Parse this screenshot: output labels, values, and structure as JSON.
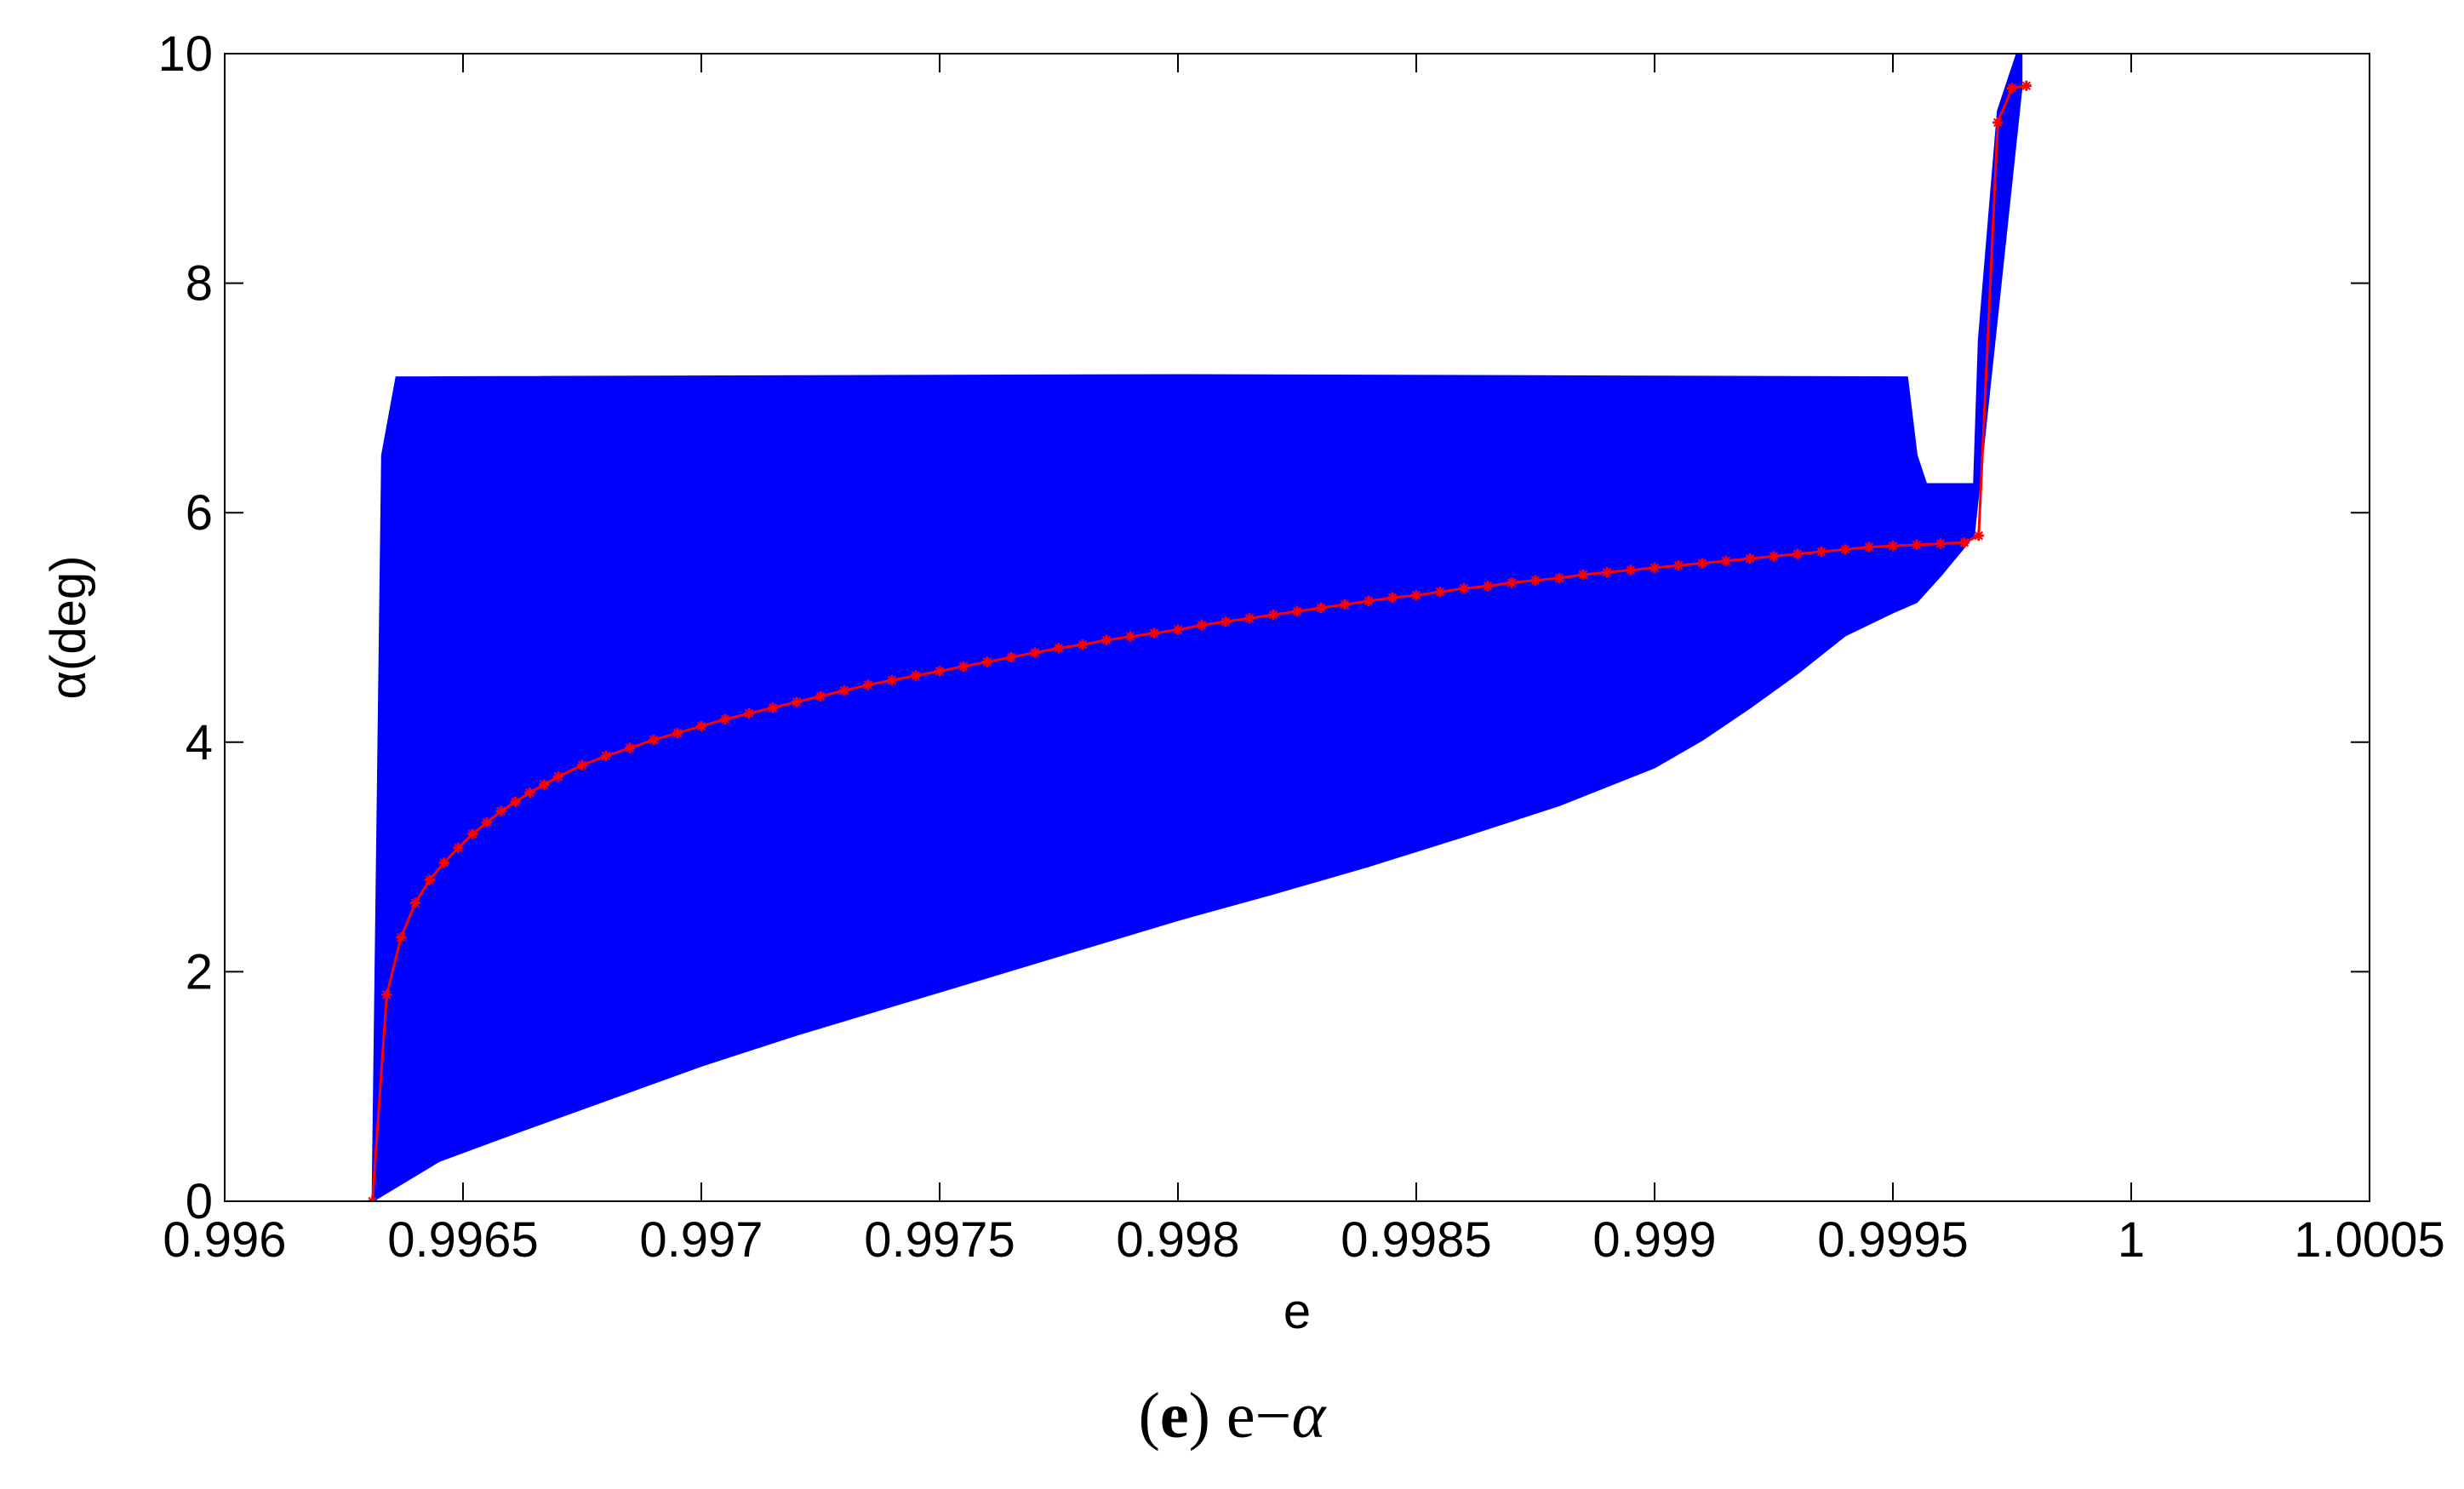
{
  "chart_data": {
    "type": "line",
    "xlabel": "e",
    "ylabel": "α(deg)",
    "xlim": [
      0.996,
      1.0005
    ],
    "ylim": [
      0,
      10
    ],
    "x_ticks": [
      "0.996",
      "0.9965",
      "0.997",
      "0.9975",
      "0.998",
      "0.9985",
      "0.999",
      "0.9995",
      "1",
      "1.0005"
    ],
    "y_ticks": [
      "0",
      "2",
      "4",
      "6",
      "8",
      "10"
    ],
    "series": [
      {
        "color": "#0000ff",
        "kind": "filled band",
        "upper_boundary": {
          "x": [
            0.99631,
            0.99633,
            0.99636,
            0.998,
            0.99953,
            0.99955,
            0.99957,
            0.99967,
            0.99968,
            0.99972,
            0.99976,
            0.99977
          ],
          "y": [
            0,
            6.5,
            7.18,
            7.2,
            7.18,
            6.5,
            6.25,
            6.25,
            7.5,
            9.5,
            10.0,
            10.0
          ]
        },
        "lower_boundary": {
          "x": [
            0.99631,
            0.99645,
            0.9966,
            0.9968,
            0.997,
            0.9972,
            0.9974,
            0.9976,
            0.9978,
            0.998,
            0.9982,
            0.9984,
            0.9986,
            0.9988,
            0.999,
            0.9991,
            0.9992,
            0.9993,
            0.9994,
            0.9995,
            0.99955,
            0.9996,
            0.99967,
            0.99977
          ],
          "y": [
            0,
            0.35,
            0.58,
            0.88,
            1.18,
            1.45,
            1.7,
            1.95,
            2.2,
            2.45,
            2.68,
            2.92,
            3.18,
            3.45,
            3.78,
            4.02,
            4.3,
            4.6,
            4.93,
            5.13,
            5.22,
            5.45,
            5.8,
            9.7
          ]
        }
      },
      {
        "color": "#ff0000",
        "kind": "line with star markers",
        "x": [
          0.99631,
          0.99634,
          0.99637,
          0.9964,
          0.99643,
          0.99646,
          0.99649,
          0.99652,
          0.99655,
          0.99658,
          0.99661,
          0.99664,
          0.99667,
          0.9967,
          0.99675,
          0.9968,
          0.99685,
          0.9969,
          0.99695,
          0.997,
          0.99705,
          0.9971,
          0.99715,
          0.9972,
          0.99725,
          0.9973,
          0.99735,
          0.9974,
          0.99745,
          0.9975,
          0.99755,
          0.9976,
          0.99765,
          0.9977,
          0.99775,
          0.9978,
          0.99785,
          0.9979,
          0.99795,
          0.998,
          0.99805,
          0.9981,
          0.99815,
          0.9982,
          0.99825,
          0.9983,
          0.99835,
          0.9984,
          0.99845,
          0.9985,
          0.99855,
          0.9986,
          0.99865,
          0.9987,
          0.99875,
          0.9988,
          0.99885,
          0.9989,
          0.99895,
          0.999,
          0.99905,
          0.9991,
          0.99915,
          0.9992,
          0.99925,
          0.9993,
          0.99935,
          0.9994,
          0.99945,
          0.9995,
          0.99955,
          0.9996,
          0.99965,
          0.99968,
          0.99972,
          0.99975,
          0.99978
        ],
        "y": [
          0,
          1.8,
          2.3,
          2.6,
          2.8,
          2.95,
          3.08,
          3.2,
          3.3,
          3.4,
          3.48,
          3.56,
          3.63,
          3.7,
          3.8,
          3.88,
          3.95,
          4.02,
          4.08,
          4.14,
          4.2,
          4.25,
          4.3,
          4.35,
          4.4,
          4.45,
          4.5,
          4.54,
          4.58,
          4.62,
          4.66,
          4.7,
          4.74,
          4.78,
          4.82,
          4.85,
          4.89,
          4.92,
          4.95,
          4.98,
          5.02,
          5.05,
          5.08,
          5.11,
          5.14,
          5.17,
          5.2,
          5.23,
          5.26,
          5.28,
          5.31,
          5.34,
          5.36,
          5.39,
          5.41,
          5.43,
          5.46,
          5.48,
          5.5,
          5.52,
          5.54,
          5.56,
          5.58,
          5.6,
          5.62,
          5.64,
          5.66,
          5.68,
          5.7,
          5.71,
          5.72,
          5.73,
          5.74,
          5.8,
          9.4,
          9.7,
          9.72
        ]
      }
    ],
    "grid": false,
    "legend": "none"
  },
  "caption": {
    "panel": "e",
    "text_left": " e−",
    "symbol": "α"
  }
}
